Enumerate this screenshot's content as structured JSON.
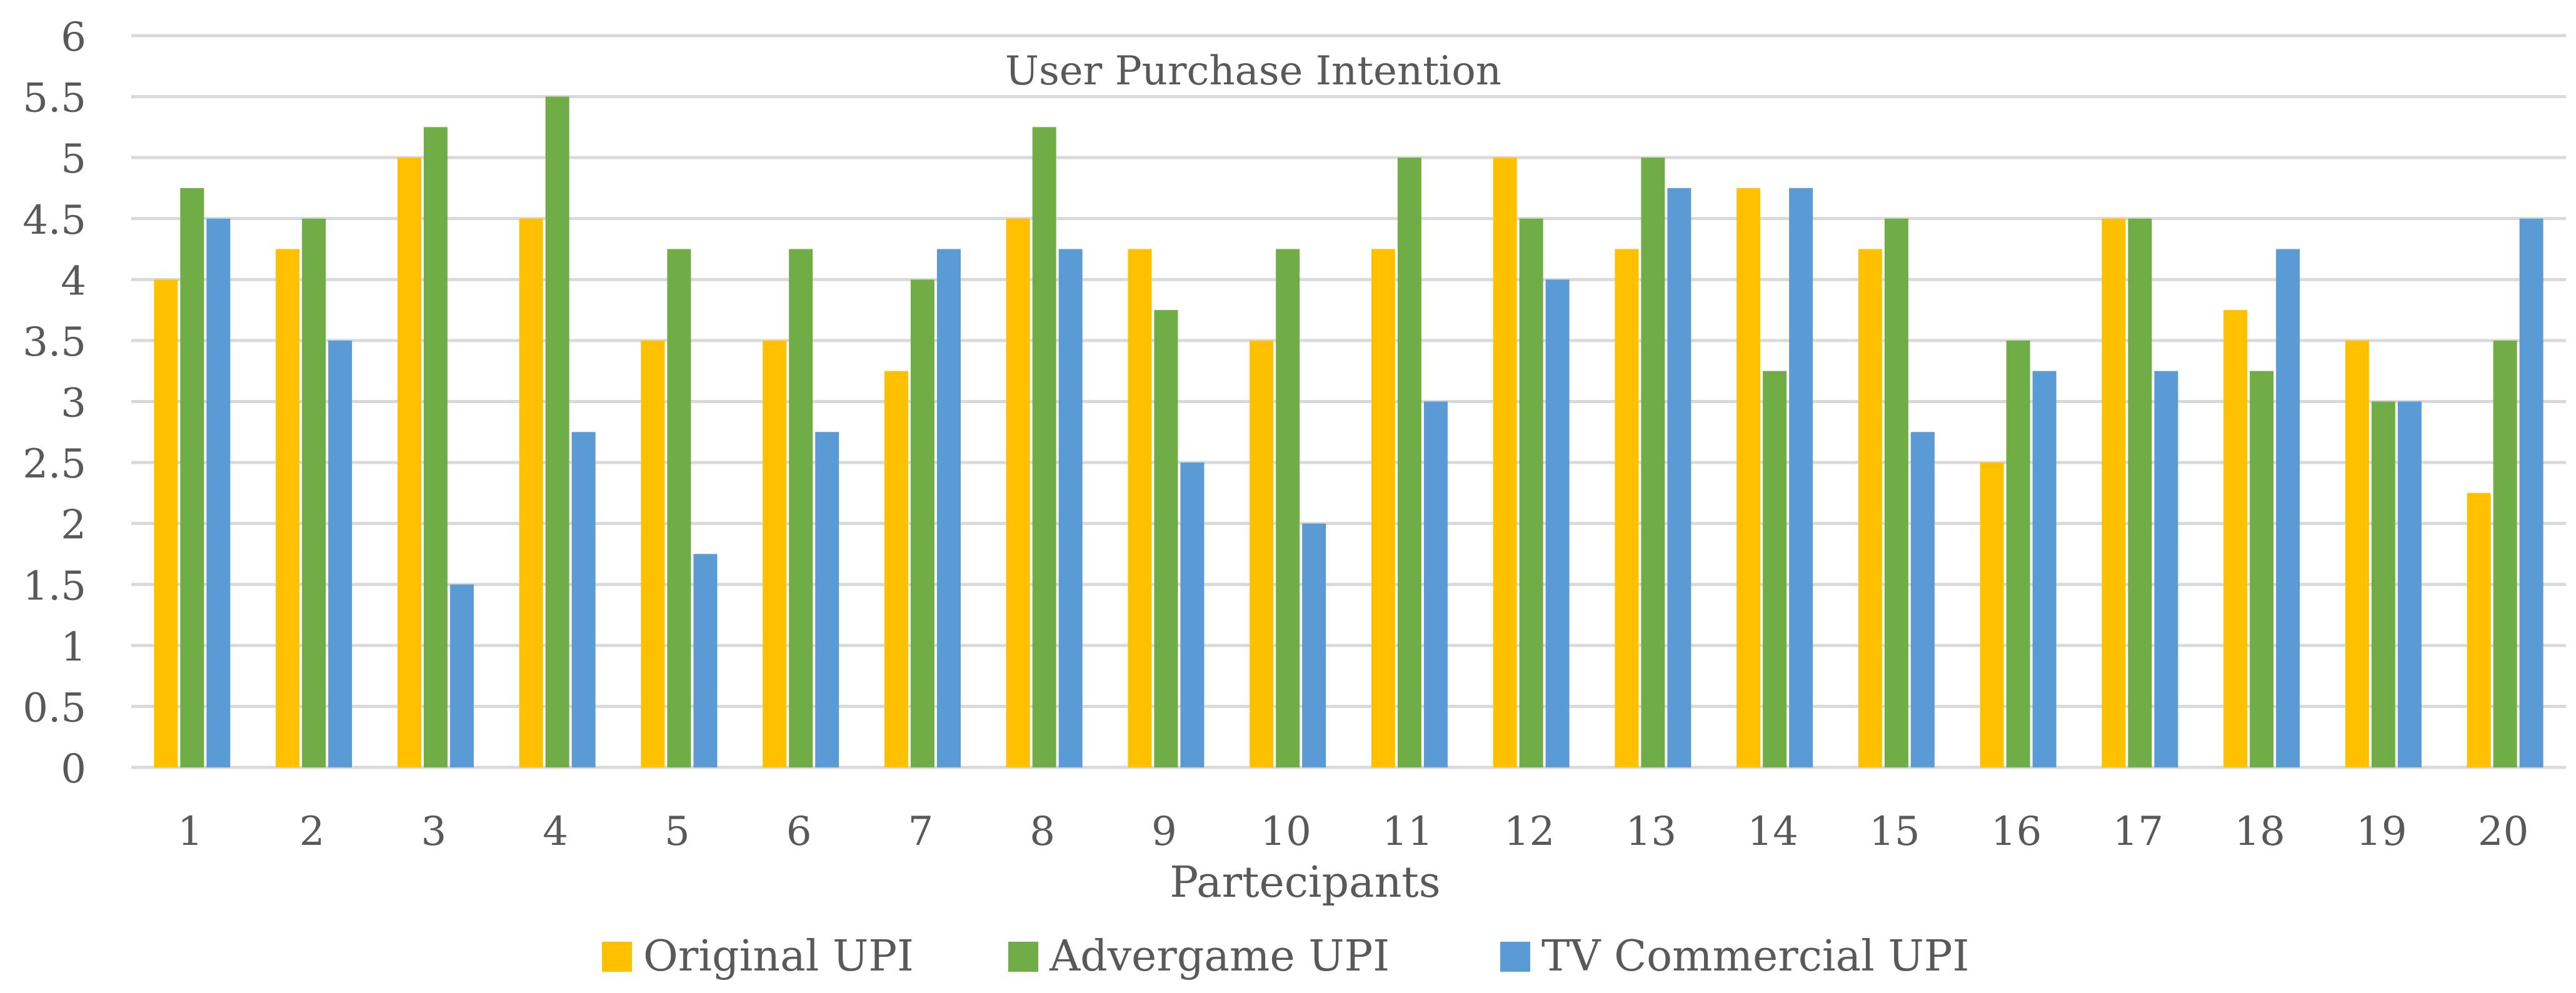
{
  "chart_data": {
    "type": "bar",
    "title": "User Purchase Intention",
    "xlabel": "Partecipants",
    "ylabel": "",
    "ylim": [
      0,
      6
    ],
    "yticks": [
      "0",
      "0.5",
      "1",
      "1.5",
      "2",
      "2.5",
      "3",
      "3.5",
      "4",
      "4.5",
      "5",
      "5.5",
      "6"
    ],
    "grid": true,
    "legend_position": "bottom",
    "categories": [
      "1",
      "2",
      "3",
      "4",
      "5",
      "6",
      "7",
      "8",
      "9",
      "10",
      "11",
      "12",
      "13",
      "14",
      "15",
      "16",
      "17",
      "18",
      "19",
      "20"
    ],
    "series": [
      {
        "name": "Original UPI",
        "color": "#FFC000",
        "values": [
          4,
          4.25,
          5,
          4.5,
          3.5,
          3.5,
          3.25,
          4.5,
          4.25,
          3.5,
          4.25,
          5,
          4.25,
          4.75,
          4.25,
          2.5,
          4.5,
          3.75,
          3.5,
          2.25
        ]
      },
      {
        "name": "Advergame UPI",
        "color": "#70AD47",
        "values": [
          4.75,
          4.5,
          5.25,
          5.5,
          4.25,
          4.25,
          4,
          5.25,
          3.75,
          4.25,
          5,
          4.5,
          5,
          3.25,
          4.5,
          3.5,
          4.5,
          3.25,
          3,
          3.5
        ]
      },
      {
        "name": "TV Commercial UPI",
        "color": "#5B9BD5",
        "values": [
          4.5,
          3.5,
          1.5,
          2.75,
          1.75,
          2.75,
          4.25,
          4.25,
          2.5,
          2,
          3,
          4,
          4.75,
          4.75,
          2.75,
          3.25,
          3.25,
          4.25,
          3,
          4.5
        ]
      }
    ],
    "colors": {
      "gridline": "#D9D9D9",
      "text": "#595959",
      "background": "#FFFFFF"
    }
  }
}
